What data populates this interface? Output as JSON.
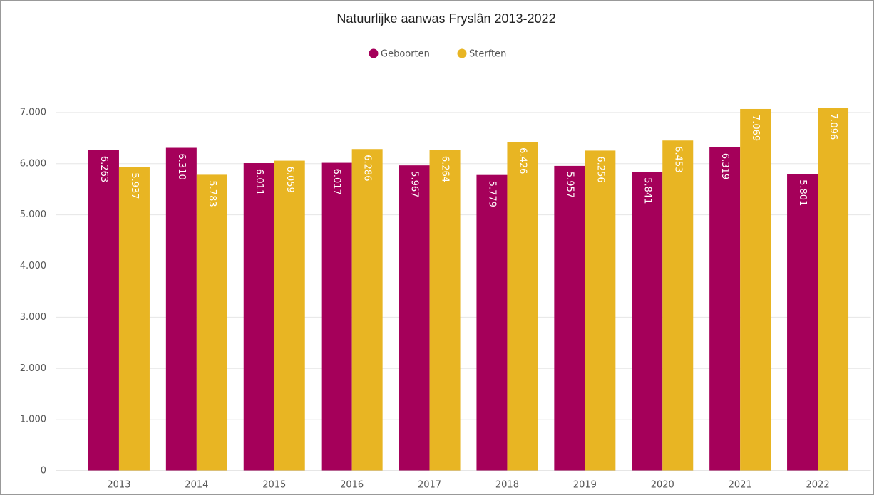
{
  "chart_data": {
    "type": "bar",
    "title": "Natuurlijke aanwas Fryslân 2013-2022",
    "categories": [
      "2013",
      "2014",
      "2015",
      "2016",
      "2017",
      "2018",
      "2019",
      "2020",
      "2021",
      "2022"
    ],
    "series": [
      {
        "name": "Geboorten",
        "color": "#a5005a",
        "values": [
          6263,
          6310,
          6011,
          6017,
          5967,
          5779,
          5957,
          5841,
          6319,
          5801
        ],
        "value_labels": [
          "6.263",
          "6.310",
          "6.011",
          "6.017",
          "5.967",
          "5.779",
          "5.957",
          "5.841",
          "6.319",
          "5.801"
        ]
      },
      {
        "name": "Sterften",
        "color": "#e8b523",
        "values": [
          5937,
          5783,
          6059,
          6286,
          6264,
          6426,
          6256,
          6453,
          7069,
          7096
        ],
        "value_labels": [
          "5.937",
          "5.783",
          "6.059",
          "6.286",
          "6.264",
          "6.426",
          "6.256",
          "6.453",
          "7.069",
          "7.096"
        ]
      }
    ],
    "ylim": [
      0,
      7500
    ],
    "yticks": [
      0,
      {
        "value": 1000,
        "label": "1.000"
      },
      {
        "value": 2000,
        "label": "2.000"
      },
      {
        "value": 3000,
        "label": "3.000"
      },
      {
        "value": 4000,
        "label": "4.000"
      },
      {
        "value": 5000,
        "label": "5.000"
      },
      {
        "value": 6000,
        "label": "6.000"
      },
      {
        "value": 7000,
        "label": "7.000"
      }
    ],
    "grid": true,
    "legend": "top"
  }
}
